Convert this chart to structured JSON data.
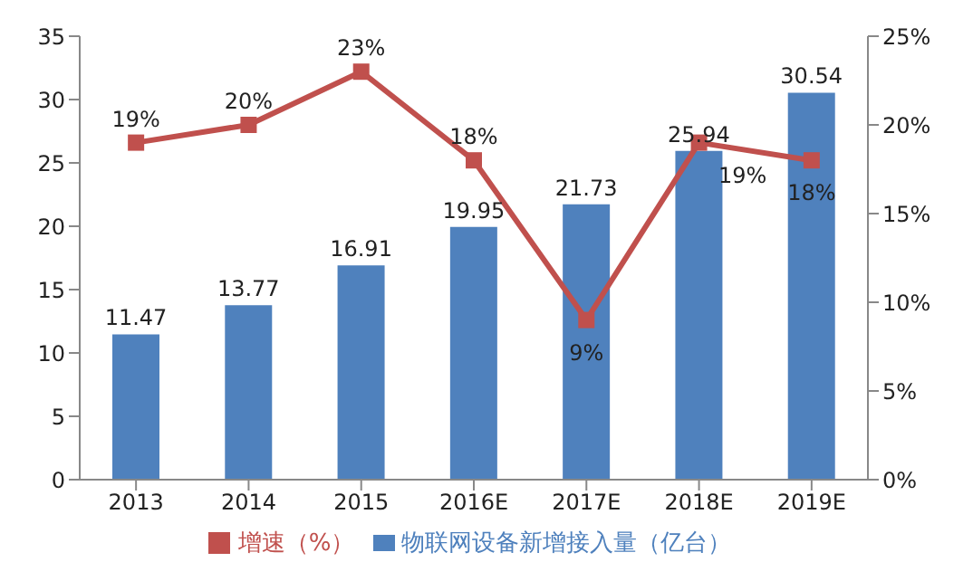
{
  "chart_data": {
    "type": "bar",
    "categories": [
      "2013",
      "2014",
      "2015",
      "2016E",
      "2017E",
      "2018E",
      "2019E"
    ],
    "series": [
      {
        "name": "物联网设备新增接入量（亿台）",
        "color": "#4f81bd",
        "values": [
          11.47,
          13.77,
          16.91,
          19.95,
          21.73,
          25.94,
          30.54
        ]
      },
      {
        "name": "增速（%）",
        "type": "line",
        "axis": "y2",
        "color": "#c0504d",
        "marker": "square",
        "values": [
          19,
          20,
          23,
          18,
          9,
          19,
          18
        ],
        "value_labels": [
          "19%",
          "20%",
          "23%",
          "18%",
          "9%",
          "19%",
          "18%"
        ]
      }
    ],
    "ylim": [
      0,
      35
    ],
    "yticks": [
      0,
      5,
      10,
      15,
      20,
      25,
      30,
      35
    ],
    "y2lim": [
      0,
      25
    ],
    "y2ticks": [
      {
        "value": 0,
        "label": "0%"
      },
      {
        "value": 5,
        "label": "5%"
      },
      {
        "value": 10,
        "label": "10%"
      },
      {
        "value": 15,
        "label": "15%"
      },
      {
        "value": 20,
        "label": "20%"
      },
      {
        "value": 25,
        "label": "25%"
      }
    ],
    "data_labels": true,
    "legend": "bottom",
    "grid": false
  }
}
